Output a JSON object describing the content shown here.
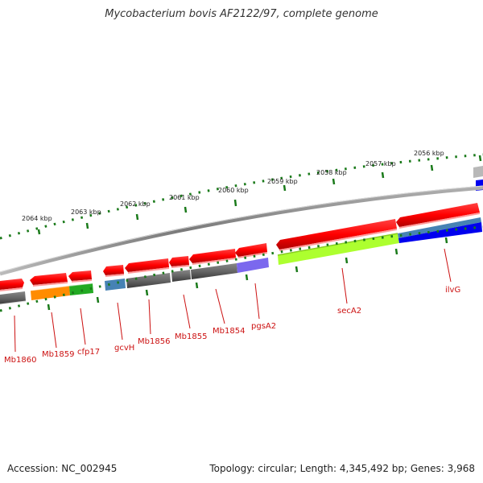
{
  "title": "Mycobacterium bovis AF2122/97, complete genome",
  "footer": {
    "accession": "Accession: NC_002945",
    "topology": "Topology: circular; Length: 4,345,492 bp; Genes: 3,968"
  },
  "scale_labels": [
    "2064 kbp",
    "2063 kbp",
    "2062 kbp",
    "2061 kbp",
    "2060 kbp",
    "2059 kbp",
    "2058 kbp",
    "2057 kbp",
    "2056 kbp"
  ],
  "gene_labels": [
    "Mb1860",
    "Mb1859",
    "cfp17",
    "gcvH",
    "Mb1856",
    "Mb1855",
    "Mb1854",
    "pgsA2",
    "secA2",
    "ilvG"
  ],
  "colors": {
    "forward_strand": "#ff0000",
    "reverse_strand": "#ee1111",
    "tick": "#1a7a1a",
    "backbone": "#888888",
    "label": "#cc1111",
    "cog_gray": "#666666",
    "cog_orange": "#ff8c00",
    "cog_green": "#22aa22",
    "cog_steelblue": "#4682b4",
    "cog_slateblue": "#7b68ee",
    "cog_greenyellow": "#adff2f",
    "cog_blue": "#0000ee"
  }
}
